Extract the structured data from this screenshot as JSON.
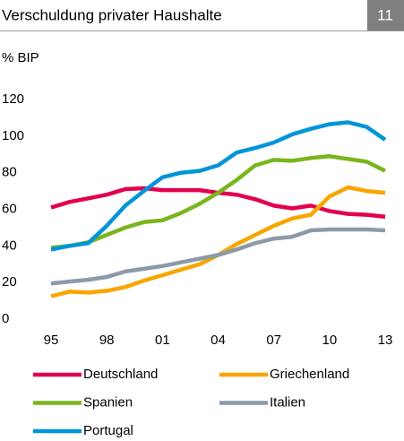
{
  "header": {
    "number": "11"
  },
  "chart_data": {
    "type": "line",
    "title": "Verschuldung privater Haushalte",
    "y_label": "% BIP",
    "categories": [
      "95",
      null,
      null,
      "98",
      null,
      null,
      "01",
      null,
      null,
      "04",
      null,
      null,
      "07",
      null,
      null,
      "10",
      null,
      null,
      "13"
    ],
    "series": [
      {
        "name": "Deutschland",
        "color": "#e2004f",
        "values": [
          61,
          64,
          66,
          68,
          71,
          71.5,
          70.5,
          70.5,
          70.5,
          69,
          68,
          65.5,
          62,
          60.5,
          62,
          59,
          57.5,
          57,
          56
        ]
      },
      {
        "name": "Griechenland",
        "color": "#f7a600",
        "values": [
          12.5,
          15,
          14.5,
          15.5,
          17.5,
          21,
          24,
          27,
          30,
          35,
          41,
          46,
          51,
          55,
          57,
          67,
          72,
          70,
          69
        ]
      },
      {
        "name": "Spanien",
        "color": "#7ab51d",
        "values": [
          39,
          40,
          42,
          46,
          50,
          53,
          54,
          58,
          63,
          69,
          76,
          84,
          87,
          86.5,
          88,
          89,
          87.5,
          86,
          81
        ]
      },
      {
        "name": "Italien",
        "color": "#8c9aa8",
        "values": [
          19.5,
          20.5,
          21.5,
          23,
          26,
          27.5,
          29,
          31,
          33,
          35,
          38,
          41.5,
          44,
          45,
          48.5,
          49,
          49,
          49,
          48.5
        ]
      },
      {
        "name": "Portugal",
        "color": "#0095d9",
        "values": [
          38,
          40,
          41.5,
          51,
          62,
          70,
          77.5,
          80,
          81,
          84,
          91,
          93.5,
          96.5,
          101,
          104,
          106.5,
          107.5,
          105,
          98
        ]
      }
    ],
    "ylim": [
      0,
      120
    ],
    "yticks": [
      0,
      20,
      40,
      60,
      80,
      100,
      120
    ],
    "grid": false
  }
}
